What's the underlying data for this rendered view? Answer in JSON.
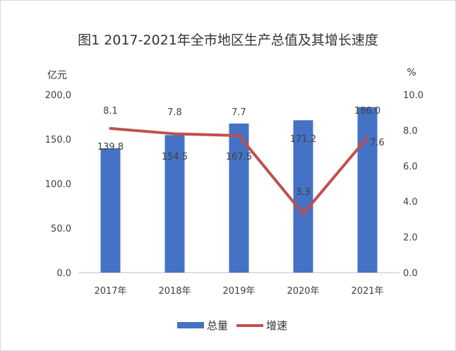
{
  "chart_data": {
    "type": "bar+line",
    "title": "图1 2017-2021年全市地区生产总值及其增长速度",
    "categories": [
      "2017年",
      "2018年",
      "2019年",
      "2020年",
      "2021年"
    ],
    "y_left": {
      "unit": "亿元",
      "range": [
        0,
        200
      ],
      "ticks": [
        "0.0",
        "50.0",
        "100.0",
        "150.0",
        "200.0"
      ]
    },
    "y_right": {
      "unit": "%",
      "range": [
        0,
        10
      ],
      "ticks": [
        "0.0",
        "2.0",
        "4.0",
        "6.0",
        "8.0",
        "10.0"
      ]
    },
    "series": [
      {
        "name": "总量",
        "type": "bar",
        "axis": "left",
        "values": [
          139.8,
          154.5,
          167.5,
          171.2,
          186.0
        ],
        "labels": [
          "139.8",
          "154.5",
          "167.5",
          "171.2",
          "186.0"
        ],
        "color": "#4472c4"
      },
      {
        "name": "增速",
        "type": "line",
        "axis": "right",
        "values": [
          8.1,
          7.8,
          7.7,
          3.3,
          7.6
        ],
        "labels": [
          "8.1",
          "7.8",
          "7.7",
          "3.3",
          "7.6"
        ],
        "color": "#c0504d"
      }
    ],
    "grid": false,
    "legend_position": "bottom"
  }
}
